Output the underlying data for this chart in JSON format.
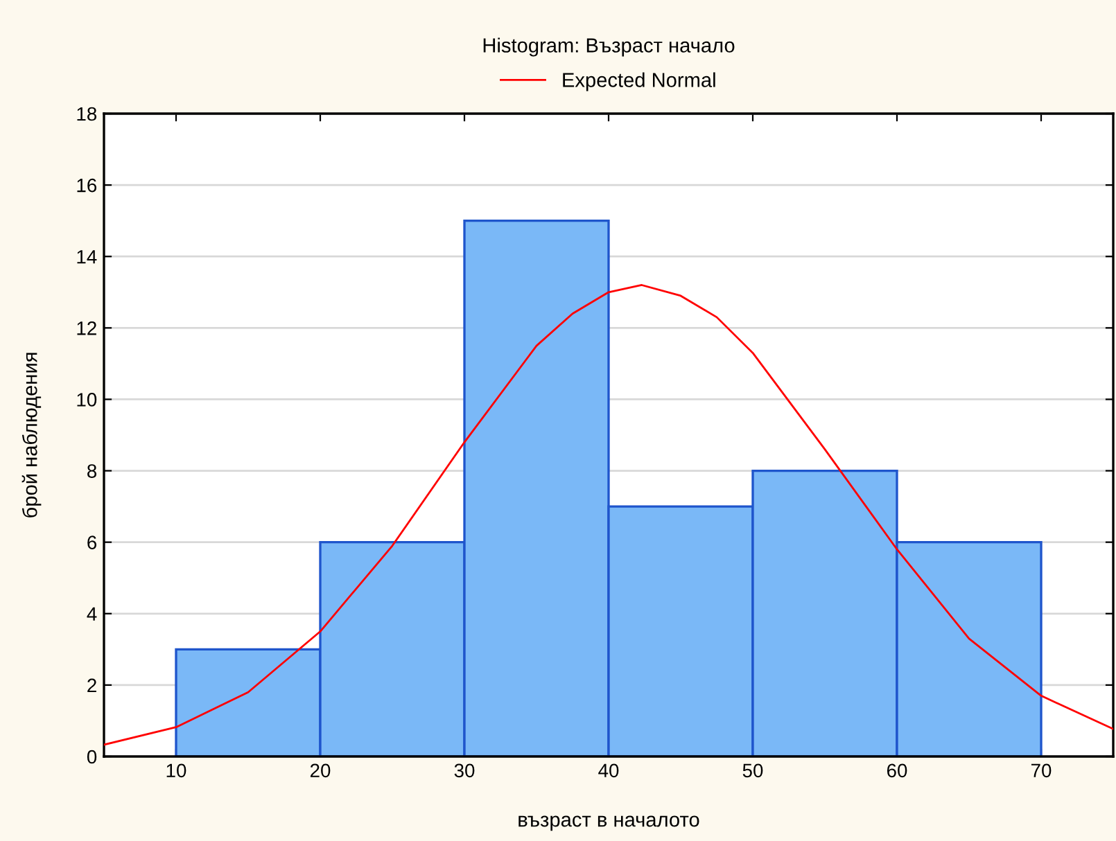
{
  "chart_data": {
    "type": "histogram",
    "title": "Histogram: Възраст начало",
    "xlabel": "възраст в началото",
    "ylabel": "брой наблюдения",
    "bins": [
      10,
      20,
      30,
      40,
      50,
      60,
      70
    ],
    "values": [
      3,
      6,
      15,
      7,
      8,
      6
    ],
    "color": "#7ab8f7",
    "series": [
      {
        "name": "Expected Normal",
        "type": "line",
        "color": "#ff0000",
        "x": [
          5,
          10,
          15,
          20,
          25,
          30,
          35,
          37.5,
          40,
          42.3,
          45,
          47.5,
          50,
          55,
          60,
          65,
          70,
          75
        ],
        "values": [
          0.33,
          0.82,
          1.8,
          3.5,
          5.9,
          8.8,
          11.5,
          12.4,
          13.0,
          13.2,
          12.9,
          12.3,
          11.3,
          8.6,
          5.8,
          3.3,
          1.7,
          0.77
        ]
      }
    ],
    "xlim": [
      5,
      75
    ],
    "xticks": [
      10,
      20,
      30,
      40,
      50,
      60,
      70
    ],
    "ylim": [
      0,
      18
    ],
    "yticks": [
      0,
      2,
      4,
      6,
      8,
      10,
      12,
      14,
      16,
      18
    ],
    "grid": "y",
    "legend": "top",
    "marker": "none",
    "line_style": "solid"
  }
}
